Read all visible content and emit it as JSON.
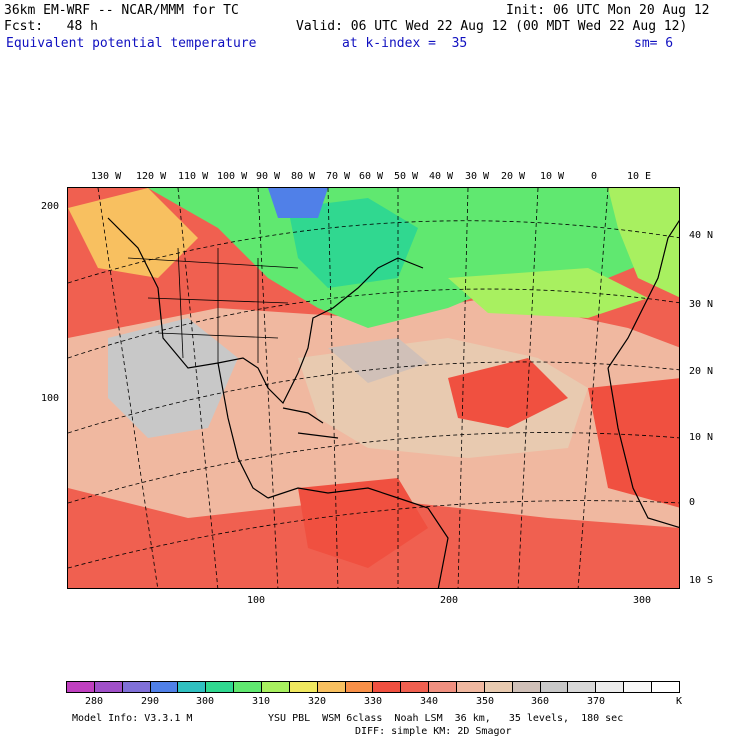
{
  "header": {
    "model": "36km EM-WRF -- NCAR/MMM for TC",
    "init": "Init: 06 UTC Mon 20 Aug 12",
    "fcst": "Fcst:   48 h",
    "valid": "Valid: 06 UTC Wed 22 Aug 12 (00 MDT Wed 22 Aug 12)",
    "field": "Equivalent potential temperature",
    "kindex": "at k-index =  35",
    "sm": "sm= 6"
  },
  "map": {
    "lon_labels": [
      "130 W",
      "120 W",
      "110 W",
      "100 W",
      "90 W",
      "80 W",
      "70 W",
      "60 W",
      "50 W",
      "40 W",
      "30 W",
      "20 W",
      "10 W",
      "0",
      "10 E"
    ],
    "lat_labels": [
      "40 N",
      "30 N",
      "20 N",
      "10 N",
      "0",
      "10 S"
    ],
    "left_axis": [
      "200",
      "100"
    ],
    "bottom_axis": [
      "100",
      "200",
      "300"
    ]
  },
  "colorbar": {
    "colors": [
      "#c040c0",
      "#a050c8",
      "#8070d8",
      "#5080e8",
      "#30c0c0",
      "#30d890",
      "#60e870",
      "#a8f060",
      "#f0e860",
      "#f8c060",
      "#f89048",
      "#f05040",
      "#f06050",
      "#f09080",
      "#f0b8a0",
      "#e8cab0",
      "#d0c0b8",
      "#c8c8c8",
      "#d8d8d8",
      "#ececec",
      "#f8f8f8",
      "#ffffff"
    ],
    "labels": [
      "280",
      "290",
      "300",
      "310",
      "320",
      "330",
      "340",
      "350",
      "360",
      "370",
      "K"
    ]
  },
  "footer": {
    "model_info": "Model Info: V3.3.1 M",
    "physics1": "YSU PBL  WSM 6class  Noah LSM  36 km,   35 levels,  180 sec",
    "physics2": "DIFF: simple KM: 2D Smagor"
  }
}
